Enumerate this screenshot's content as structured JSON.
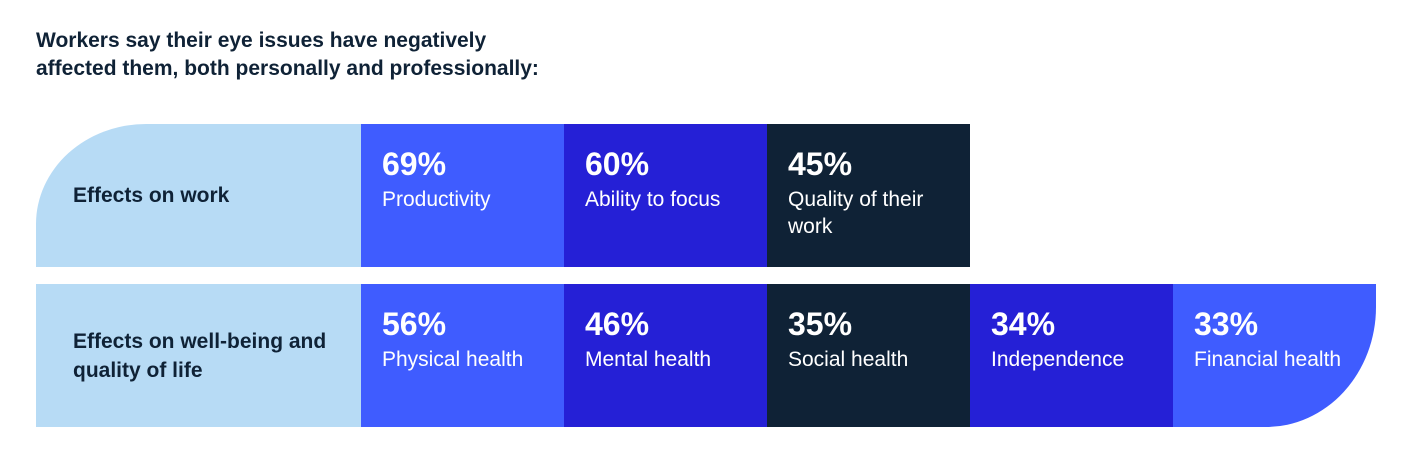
{
  "title_lines": [
    "Workers say their eye issues have negatively",
    "affected them, both personally and professionally:"
  ],
  "colors": {
    "label_background": "#b7dbf5",
    "blue": "#3f5cff",
    "indigo": "#2520d6",
    "navy": "#0f2236"
  },
  "rows": [
    {
      "label": "Effects on work",
      "items": [
        {
          "pct": "69%",
          "value": 69,
          "desc": "Productivity",
          "color": "#3f5cff"
        },
        {
          "pct": "60%",
          "value": 60,
          "desc": "Ability to focus",
          "color": "#2520d6"
        },
        {
          "pct": "45%",
          "value": 45,
          "desc": "Quality of their work",
          "color": "#0f2236"
        }
      ]
    },
    {
      "label": "Effects on well-being and quality of life",
      "items": [
        {
          "pct": "56%",
          "value": 56,
          "desc": "Physical health",
          "color": "#3f5cff"
        },
        {
          "pct": "46%",
          "value": 46,
          "desc": "Mental health",
          "color": "#2520d6"
        },
        {
          "pct": "35%",
          "value": 35,
          "desc": "Social health",
          "color": "#0f2236"
        },
        {
          "pct": "34%",
          "value": 34,
          "desc": "Independence",
          "color": "#2520d6"
        },
        {
          "pct": "33%",
          "value": 33,
          "desc": "Financial health",
          "color": "#3f5cff"
        }
      ]
    }
  ]
}
